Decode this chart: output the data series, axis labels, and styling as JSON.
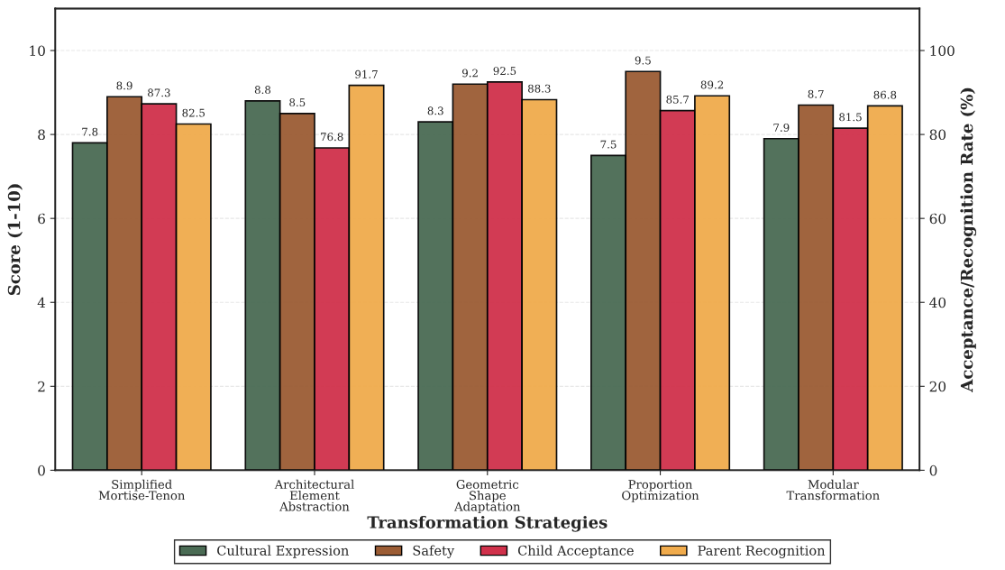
{
  "chart_data": {
    "type": "bar",
    "xlabel": "Transformation Strategies",
    "ylabel": "Score (1-10)",
    "y2label": "Acceptance/Recognition Rate (%)",
    "categories": [
      "Simplified\nMortise-Tenon",
      "Architectural\nElement\nAbstraction",
      "Geometric\nShape\nAdaptation",
      "Proportion\nOptimization",
      "Modular\nTransformation"
    ],
    "series": [
      {
        "name": "Cultural Expression",
        "color": "#4a6b54",
        "values": [
          7.8,
          8.8,
          8.3,
          7.5,
          7.9
        ]
      },
      {
        "name": "Safety",
        "color": "#9b5c34",
        "values": [
          8.9,
          8.5,
          9.2,
          9.5,
          8.7
        ]
      },
      {
        "name": "Child Acceptance",
        "color": "#d0314b",
        "axis": "y2",
        "values": [
          87.3,
          76.8,
          92.5,
          85.7,
          81.5
        ]
      },
      {
        "name": "Parent Recognition",
        "color": "#f0ab4c",
        "axis": "y2",
        "values": [
          82.5,
          91.7,
          88.3,
          89.2,
          86.8
        ]
      }
    ],
    "ylim": [
      0,
      11
    ],
    "yticks": [
      0,
      2,
      4,
      6,
      8,
      10
    ],
    "y2lim": [
      0,
      110
    ],
    "y2ticks": [
      0,
      20,
      40,
      60,
      80,
      100
    ],
    "data_labels": true,
    "grid": "y",
    "legend": "bottom"
  }
}
